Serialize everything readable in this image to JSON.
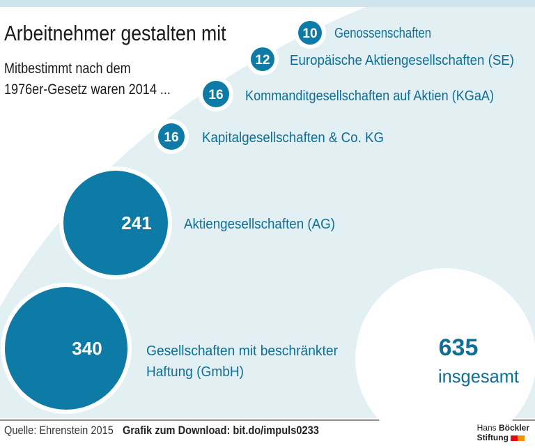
{
  "title": "Arbeitnehmer gestalten mit",
  "subtitle_line1": "Mitbestimmt nach dem",
  "subtitle_line2": "1976er-Gesetz waren 2014 ...",
  "chart_data": {
    "type": "bubble",
    "categories": [
      "Genossenschaften",
      "Europäische Aktiengesellschaften (SE)",
      "Kommanditgesellschaften auf Aktien (KGaA)",
      "Kapitalgesellschaften & Co. KG",
      "Aktiengesellschaften (AG)",
      "Gesellschaften mit beschränkter Haftung (GmbH)"
    ],
    "values": [
      10,
      12,
      16,
      16,
      241,
      340
    ],
    "total": 635,
    "total_label": "insgesamt",
    "colors": {
      "bubble": "#0e7aa6",
      "total_bubble": "#ffffff",
      "label": "#0e6e96",
      "background": "#e2f0f3",
      "top_band": "#cfe5ee"
    }
  },
  "footer": {
    "source": "Quelle: Ehrenstein 2015",
    "download": "Grafik zum Download: bit.do/impuls0233",
    "logo_line1_a": "Hans ",
    "logo_line1_b": "Böckler",
    "logo_line2": "Stiftung"
  }
}
